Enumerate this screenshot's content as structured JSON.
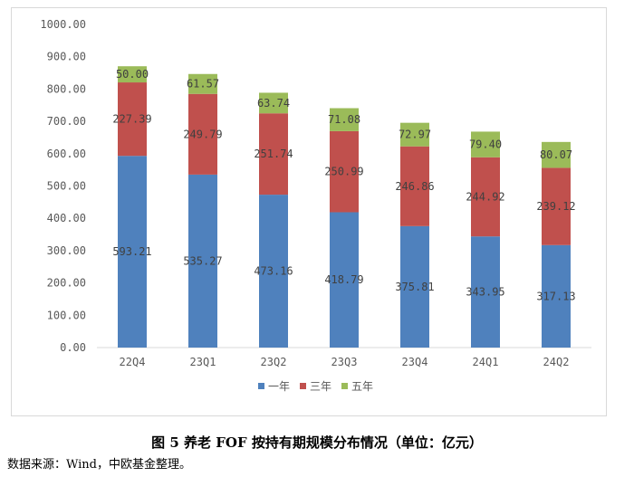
{
  "caption": "图 5  养老 FOF 按持有期规模分布情况（单位：亿元）",
  "source": "数据来源：Wind，中欧基金整理。",
  "chart_data": {
    "type": "bar",
    "stacked": true,
    "categories": [
      "22Q4",
      "23Q1",
      "23Q2",
      "23Q3",
      "23Q4",
      "24Q1",
      "24Q2"
    ],
    "series": [
      {
        "name": "一年",
        "color": "#4f81bd",
        "values": [
          593.21,
          535.27,
          473.16,
          418.79,
          375.81,
          343.95,
          317.13
        ]
      },
      {
        "name": "三年",
        "color": "#c0504d",
        "values": [
          227.39,
          249.79,
          251.74,
          250.99,
          246.86,
          244.92,
          239.12
        ]
      },
      {
        "name": "五年",
        "color": "#9bbb59",
        "values": [
          50.0,
          61.57,
          63.74,
          71.08,
          72.97,
          79.4,
          80.07
        ]
      }
    ],
    "ylim": [
      0,
      1000
    ],
    "yticks": [
      "0.00",
      "100.00",
      "200.00",
      "300.00",
      "400.00",
      "500.00",
      "600.00",
      "700.00",
      "800.00",
      "900.00",
      "1000.00"
    ],
    "data_labels": [
      [
        "593.21",
        "535.27",
        "473.16",
        "418.79",
        "375.81",
        "343.95",
        "317.13"
      ],
      [
        "227.39",
        "249.79",
        "251.74",
        "250.99",
        "246.86",
        "244.92",
        "239.12"
      ],
      [
        "50.00",
        "61.57",
        "63.74",
        "71.08",
        "72.97",
        "79.40",
        "80.07"
      ]
    ],
    "grid": false,
    "legend": "bottom"
  }
}
